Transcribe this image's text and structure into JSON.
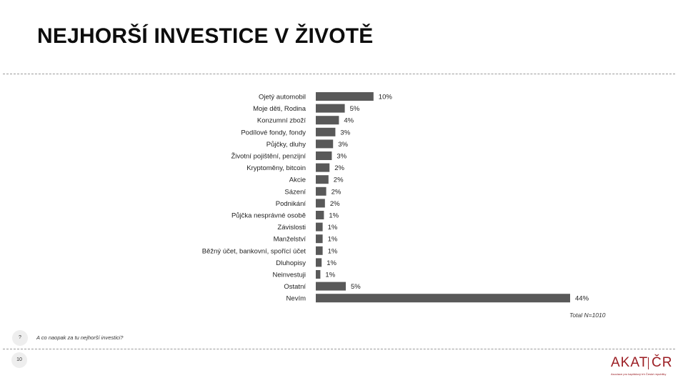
{
  "slide": {
    "title": "NEJHORŠÍ INVESTICE V ŽIVOTĚ",
    "question_badge": "?",
    "question": "A co naopak za tu nejhorší investici?",
    "page_number": "10",
    "logo_left": "AKAT",
    "logo_right": "ČR",
    "logo_tagline": "Asociace pro kapitálový trh České republiky"
  },
  "colors": {
    "bar": "#595959",
    "logo": "#9b1c22"
  },
  "chart_data": {
    "type": "bar",
    "orientation": "horizontal",
    "categories": [
      "Ojetý automobil",
      "Moje děti, Rodina",
      "Konzumní zboží",
      "Podílové fondy, fondy",
      "Půjčky, dluhy",
      "Životní pojištění, penzijní",
      "Kryptoměny, bitcoin",
      "Akcie",
      "Sázení",
      "Podnikání",
      "Půjčka nesprávné osobě",
      "Závislosti",
      "Manželství",
      "Běžný účet, bankovní, spořící účet",
      "Dluhopisy",
      "Neinvestuji",
      "Ostatní",
      "Nevím"
    ],
    "values": [
      10,
      5,
      4,
      3,
      3,
      3,
      2,
      2,
      2,
      2,
      1,
      1,
      1,
      1,
      1,
      1,
      5,
      44
    ],
    "value_labels": [
      "10%",
      "5%",
      "4%",
      "3%",
      "3%",
      "3%",
      "2%",
      "2%",
      "2%",
      "2%",
      "1%",
      "1%",
      "1%",
      "1%",
      "1%",
      "1%",
      "5%",
      "44%"
    ],
    "bar_fraction": [
      0.227,
      0.114,
      0.091,
      0.077,
      0.068,
      0.063,
      0.054,
      0.05,
      0.041,
      0.036,
      0.032,
      0.027,
      0.027,
      0.027,
      0.023,
      0.018,
      0.118,
      1.0
    ],
    "unit": "%",
    "note": "Total N=1010",
    "grid": false,
    "legend": false
  }
}
